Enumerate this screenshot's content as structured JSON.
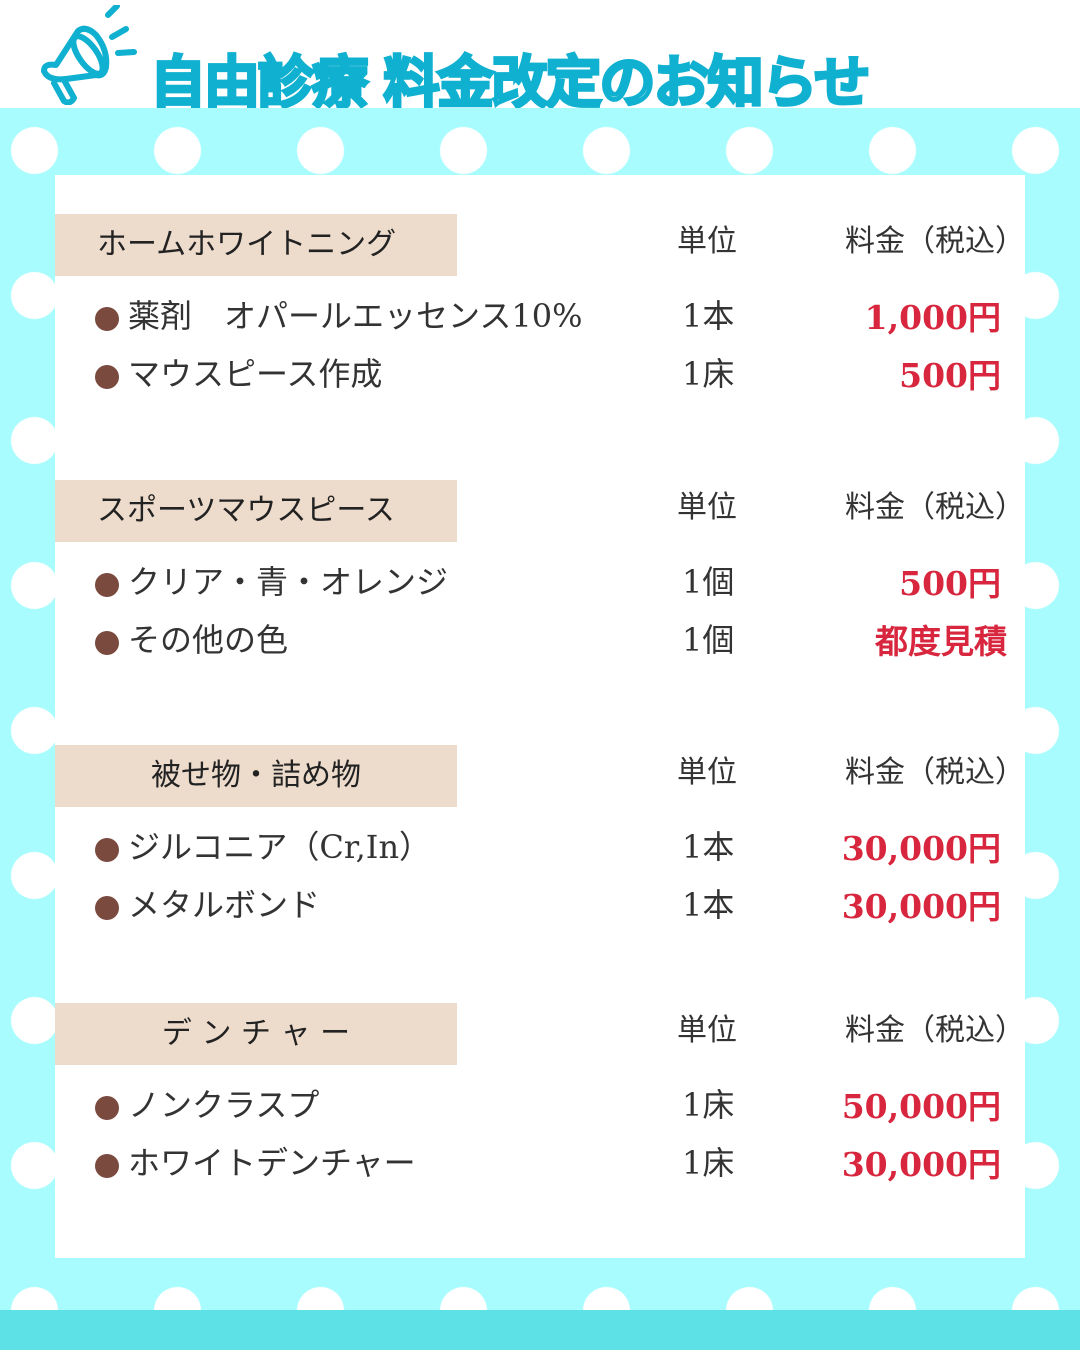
{
  "title": "自由診療 料金改定のお知らせ",
  "colors": {
    "accent": "#0fb0d0",
    "background": "#a8fcfd",
    "footer": "#5de1e6",
    "header_box": "#eddccc",
    "price": "#d7263d",
    "bullet": "#7a4a3e"
  },
  "icon": "megaphone-icon",
  "sections": [
    {
      "title": "ホームホワイトニング",
      "unit_header": "単位",
      "price_header": "料金（税込）",
      "items": [
        {
          "name": "薬剤　オパールエッセンス10%",
          "unit": "1本",
          "price": "1,000円"
        },
        {
          "name": "マウスピース作成",
          "unit": "1床",
          "price": "500円"
        }
      ]
    },
    {
      "title": "スポーツマウスピース",
      "unit_header": "単位",
      "price_header": "料金（税込）",
      "items": [
        {
          "name": "クリア・青・オレンジ",
          "unit": "1個",
          "price": "500円"
        },
        {
          "name": "その他の色",
          "unit": "1個",
          "price": "都度見積"
        }
      ]
    },
    {
      "title": "被せ物・詰め物",
      "unit_header": "単位",
      "price_header": "料金（税込）",
      "items": [
        {
          "name": "ジルコニア（Cr,In）",
          "unit": "1本",
          "price": "30,000円"
        },
        {
          "name": "メタルボンド",
          "unit": "1本",
          "price": "30,000円"
        }
      ]
    },
    {
      "title": "デ ン チ ャ ー",
      "unit_header": "単位",
      "price_header": "料金（税込）",
      "items": [
        {
          "name": "ノンクラスプ",
          "unit": "1床",
          "price": "50,000円"
        },
        {
          "name": "ホワイトデンチャー",
          "unit": "1床",
          "price": "30,000円"
        }
      ]
    }
  ]
}
